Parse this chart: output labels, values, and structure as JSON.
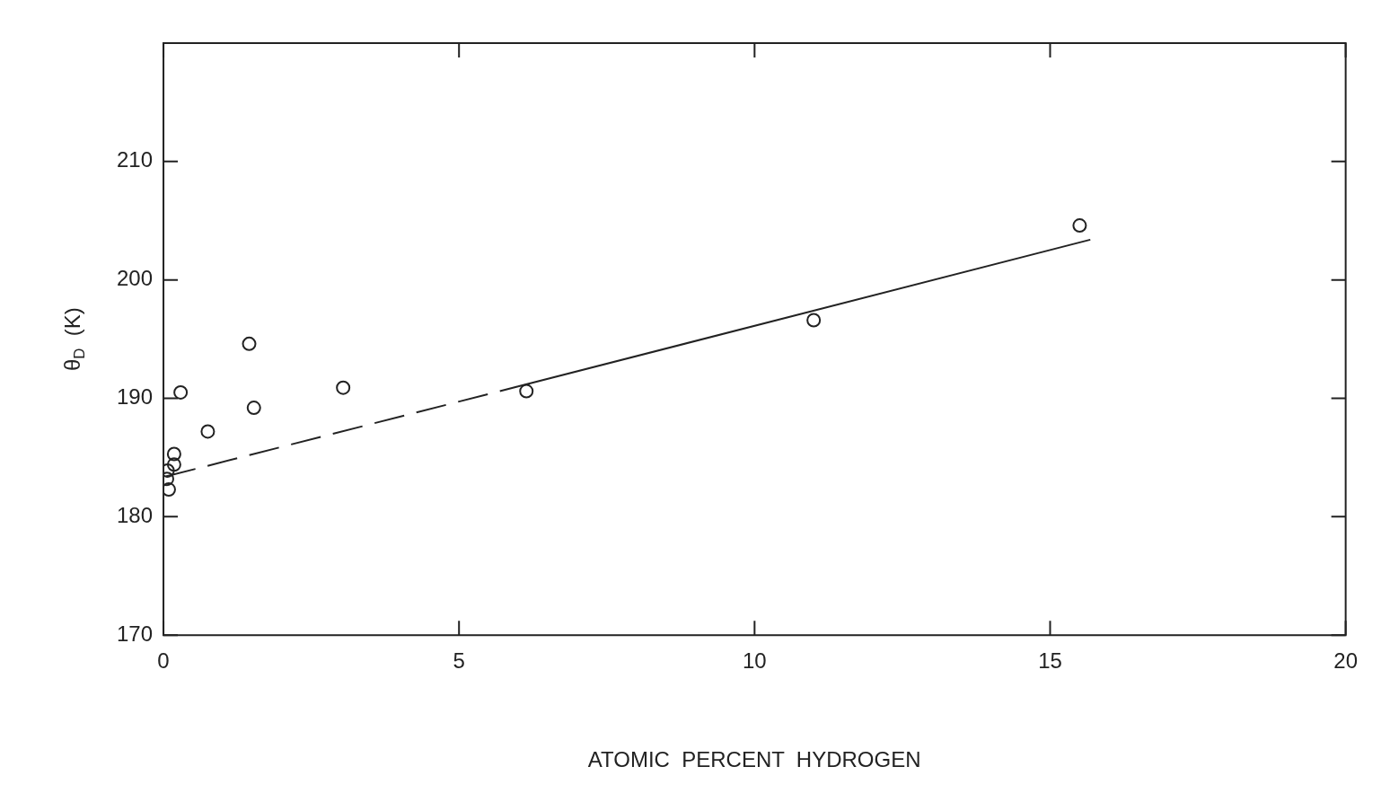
{
  "chart_data": {
    "type": "scatter",
    "xlabel": "ATOMIC  PERCENT  HYDROGEN",
    "ylabel": "θ$_{D}$  (K)",
    "xlim": [
      0,
      20
    ],
    "ylim": [
      170,
      220
    ],
    "xticks": [
      0,
      5,
      10,
      15,
      20
    ],
    "yticks": [
      170,
      180,
      190,
      200,
      210
    ],
    "grid": false,
    "legend": false,
    "marker": "circle",
    "series": [
      {
        "color": "#222222",
        "x": [
          0.18,
          0.18,
          0.07,
          0.06,
          0.09,
          0.29,
          0.75,
          1.45,
          1.53,
          3.04,
          6.14,
          11.0,
          15.5
        ],
        "values": [
          185.3,
          184.4,
          183.9,
          183.2,
          182.3,
          190.5,
          187.2,
          194.6,
          189.2,
          190.9,
          190.6,
          196.6,
          204.6
        ]
      },
      {
        "type": "line",
        "color": "#222222",
        "line_style": "dashed",
        "marker": "none",
        "x": [
          0.04,
          6.0
        ],
        "values": [
          183.4,
          191.0
        ]
      },
      {
        "type": "line",
        "color": "#222222",
        "line_style": "solid",
        "marker": "none",
        "x": [
          6.0,
          15.68
        ],
        "values": [
          191.0,
          203.4
        ]
      }
    ]
  }
}
